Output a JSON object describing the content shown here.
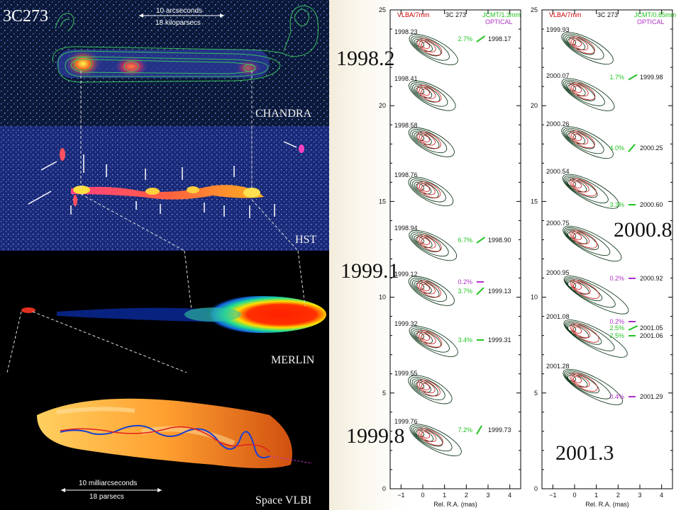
{
  "title": "3C273",
  "left": {
    "chandra": {
      "label": "CHANDRA",
      "scale_top": "10 arcseconds",
      "scale_bottom": "18 kiloparsecs"
    },
    "hst": {
      "label": "HST"
    },
    "merlin": {
      "label": "MERLIN"
    },
    "vlbi": {
      "label": "Space VLBI",
      "scale_top": "10 milliarcseconds",
      "scale_bottom": "18 parsecs"
    }
  },
  "epoch_labels": [
    "1998.2",
    "1999.1",
    "1999.8",
    "2000.8",
    "2001.3"
  ],
  "plot1": {
    "header_left": "VLBA/7mm",
    "header_mid": "3C 273",
    "header_right_1": "JCMT/1.3mm",
    "header_right_2": "OPTICAL",
    "y_ticks": [
      "0",
      "5",
      "10",
      "15",
      "20",
      "25"
    ],
    "x_ticks": [
      "−1",
      "0",
      "1",
      "2",
      "3",
      "4"
    ],
    "xlabel": "Rel. R.A. (mas)",
    "epochs": [
      "1998.23",
      "1998.41",
      "1998.58",
      "1998.76",
      "1998.94",
      "1999.12",
      "1999.32",
      "1999.55",
      "1999.76"
    ],
    "pol": [
      {
        "pct": "2.7%",
        "date": "1998.17"
      },
      {
        "pct": "6.7%",
        "date": "1998.90"
      },
      {
        "pct": "0.2%",
        "date": ""
      },
      {
        "pct": "3.7%",
        "date": "1999.13"
      },
      {
        "pct": "3.4%",
        "date": "1999.31"
      },
      {
        "pct": "7.2%",
        "date": "1999.73"
      }
    ]
  },
  "plot2": {
    "header_left": "VLBA/7mm",
    "header_mid": "3C 273",
    "header_right_1": "JCMT/0.85mm",
    "header_right_2": "OPTICAL",
    "y_ticks": [
      "0",
      "5",
      "10",
      "15",
      "20",
      "25"
    ],
    "x_ticks": [
      "−1",
      "0",
      "1",
      "2",
      "3",
      "4"
    ],
    "xlabel": "Rel. R.A. (mas)",
    "epochs": [
      "1999.93",
      "2000.07",
      "2000.26",
      "2000.54",
      "2000.75",
      "2000.95",
      "2001.08",
      "2001.28"
    ],
    "pol": [
      {
        "pct": "1.7%",
        "date": "1999.98"
      },
      {
        "pct": "4.0%",
        "date": "2000.25"
      },
      {
        "pct": "3.3%",
        "date": "2000.60"
      },
      {
        "pct": "0.2%",
        "date": "2000.92"
      },
      {
        "pct": "0.2%",
        "date": ""
      },
      {
        "pct": "2.5%",
        "date": "2001.05"
      },
      {
        "pct": "2.5%",
        "date": "2001.06"
      },
      {
        "pct": "0.4%",
        "date": "2001.29"
      }
    ]
  },
  "colors": {
    "jcmt": "#1fc21f",
    "optical": "#b030c8",
    "vlba": "#c81818",
    "header": "#cc0000",
    "contour": "#143c1e"
  }
}
